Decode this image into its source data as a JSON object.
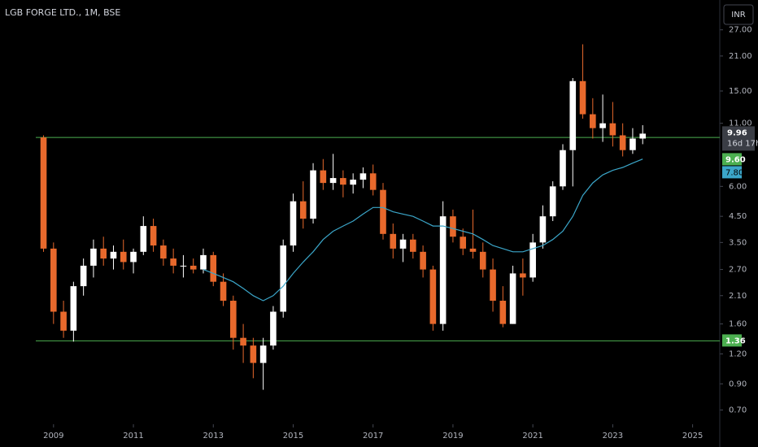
{
  "chart_data": {
    "type": "candlestick",
    "title": "LGB FORGE LTD., 1M, BSE",
    "currency": "INR",
    "log_y": true,
    "up_color": "#ffffff",
    "down_color": "#e8692c",
    "x": [
      2008.75,
      2009,
      2009.25,
      2009.5,
      2009.75,
      2010,
      2010.25,
      2010.5,
      2010.75,
      2011,
      2011.25,
      2011.5,
      2011.75,
      2012,
      2012.25,
      2012.5,
      2012.75,
      2013,
      2013.25,
      2013.5,
      2013.75,
      2014,
      2014.25,
      2014.5,
      2014.75,
      2015,
      2015.25,
      2015.5,
      2015.75,
      2016,
      2016.25,
      2016.5,
      2016.75,
      2017,
      2017.25,
      2017.5,
      2017.75,
      2018,
      2018.25,
      2018.5,
      2018.75,
      2019,
      2019.25,
      2019.5,
      2019.75,
      2020,
      2020.25,
      2020.5,
      2020.75,
      2021,
      2021.25,
      2021.5,
      2021.75,
      2022,
      2022.25,
      2022.5,
      2022.75,
      2023,
      2023.25,
      2023.5,
      2023.75
    ],
    "open": [
      9.6,
      3.3,
      1.8,
      1.5,
      2.3,
      2.8,
      3.3,
      3.0,
      3.2,
      2.9,
      3.2,
      4.1,
      3.4,
      3.0,
      2.8,
      2.8,
      2.7,
      3.1,
      2.4,
      2.0,
      1.4,
      1.3,
      1.1,
      1.3,
      1.8,
      3.4,
      5.2,
      4.4,
      7.0,
      6.2,
      6.5,
      6.1,
      6.4,
      6.8,
      5.8,
      3.8,
      3.3,
      3.6,
      3.2,
      2.7,
      1.6,
      4.5,
      3.7,
      3.3,
      3.2,
      2.7,
      2.0,
      1.6,
      2.6,
      2.5,
      3.5,
      4.5,
      6.0,
      8.5,
      16.5,
      12.0,
      10.5,
      11.0,
      9.8,
      8.5,
      9.5
    ],
    "high": [
      9.8,
      3.5,
      2.0,
      2.4,
      3.0,
      3.6,
      3.7,
      3.4,
      3.6,
      3.3,
      4.5,
      4.4,
      3.6,
      3.3,
      3.1,
      3.0,
      3.3,
      3.2,
      2.6,
      2.1,
      1.6,
      1.4,
      1.4,
      1.9,
      3.6,
      5.6,
      6.3,
      7.5,
      7.8,
      8.2,
      7.0,
      6.8,
      7.2,
      7.4,
      6.2,
      4.2,
      3.8,
      3.8,
      3.4,
      2.8,
      5.2,
      4.8,
      4.0,
      4.8,
      3.5,
      3.0,
      2.3,
      2.8,
      3.0,
      3.8,
      5.0,
      6.3,
      9.0,
      17.0,
      23.5,
      14.0,
      14.5,
      13.5,
      11.0,
      10.5,
      10.8
    ],
    "low": [
      3.2,
      1.6,
      1.4,
      1.35,
      2.1,
      2.5,
      2.8,
      2.7,
      2.7,
      2.6,
      3.1,
      3.2,
      2.8,
      2.6,
      2.5,
      2.6,
      2.6,
      2.3,
      1.9,
      1.25,
      1.1,
      0.95,
      0.85,
      1.25,
      1.7,
      3.2,
      4.0,
      4.2,
      5.8,
      5.8,
      5.4,
      5.6,
      5.9,
      5.5,
      3.6,
      3.0,
      2.9,
      3.0,
      2.5,
      1.5,
      1.5,
      3.5,
      3.1,
      3.0,
      2.5,
      1.8,
      1.55,
      1.6,
      2.1,
      2.4,
      3.3,
      4.3,
      5.8,
      6.0,
      11.5,
      9.5,
      9.2,
      8.8,
      8.0,
      8.2,
      9.0
    ],
    "close": [
      3.3,
      1.8,
      1.5,
      2.3,
      2.8,
      3.3,
      3.0,
      3.2,
      2.9,
      3.2,
      4.1,
      3.4,
      3.0,
      2.8,
      2.8,
      2.7,
      3.1,
      2.4,
      2.0,
      1.4,
      1.3,
      1.1,
      1.3,
      1.8,
      3.4,
      5.2,
      4.4,
      7.0,
      6.2,
      6.5,
      6.1,
      6.4,
      6.8,
      5.8,
      3.8,
      3.3,
      3.6,
      3.2,
      2.7,
      1.6,
      4.5,
      3.7,
      3.3,
      3.2,
      2.7,
      2.0,
      1.6,
      2.6,
      2.5,
      3.5,
      4.5,
      6.0,
      8.5,
      16.5,
      12.0,
      10.5,
      11.0,
      9.8,
      8.5,
      9.5,
      9.96
    ],
    "countdown": "16d 17h",
    "ma": {
      "color": "#3ba6c9",
      "x": [
        2012.75,
        2013,
        2013.25,
        2013.5,
        2013.75,
        2014,
        2014.25,
        2014.5,
        2014.75,
        2015,
        2015.25,
        2015.5,
        2015.75,
        2016,
        2016.25,
        2016.5,
        2016.75,
        2017,
        2017.25,
        2017.5,
        2017.75,
        2018,
        2018.25,
        2018.5,
        2018.75,
        2019,
        2019.25,
        2019.5,
        2019.75,
        2020,
        2020.25,
        2020.5,
        2020.75,
        2021,
        2021.25,
        2021.5,
        2021.75,
        2022,
        2022.25,
        2022.5,
        2022.75,
        2023,
        2023.25,
        2023.5,
        2023.75
      ],
      "values": [
        2.7,
        2.6,
        2.5,
        2.4,
        2.25,
        2.1,
        2.0,
        2.1,
        2.3,
        2.6,
        2.9,
        3.2,
        3.6,
        3.9,
        4.1,
        4.3,
        4.6,
        4.9,
        4.9,
        4.7,
        4.6,
        4.5,
        4.3,
        4.1,
        4.1,
        4.0,
        3.9,
        3.8,
        3.6,
        3.4,
        3.3,
        3.2,
        3.2,
        3.3,
        3.4,
        3.6,
        3.9,
        4.5,
        5.5,
        6.2,
        6.7,
        7.0,
        7.2,
        7.5,
        7.8
      ],
      "last_label": "7.80"
    },
    "hlines": [
      {
        "value": 9.6,
        "label": "9.60",
        "color": "#4caf50"
      },
      {
        "value": 1.36,
        "label": "1.36",
        "color": "#4caf50"
      }
    ],
    "ylim": [
      0.62,
      28.9
    ],
    "yticks": [
      {
        "value": 0.7,
        "label": "0.70"
      },
      {
        "value": 0.9,
        "label": "0.90"
      },
      {
        "value": 1.2,
        "label": "1.20"
      },
      {
        "value": 1.6,
        "label": "1.60"
      },
      {
        "value": 2.1,
        "label": "2.10"
      },
      {
        "value": 2.7,
        "label": "2.70"
      },
      {
        "value": 3.5,
        "label": "3.50"
      },
      {
        "value": 4.5,
        "label": "4.50"
      },
      {
        "value": 6,
        "label": "6.00"
      },
      {
        "value": 11,
        "label": "11.00"
      },
      {
        "value": 15,
        "label": "15.00"
      },
      {
        "value": 21,
        "label": "21.00"
      },
      {
        "value": 27,
        "label": "27.00"
      }
    ],
    "xlim": [
      2007.66,
      2025.68
    ],
    "xticks": [
      2009,
      2011,
      2013,
      2015,
      2017,
      2019,
      2021,
      2023,
      2025
    ]
  }
}
